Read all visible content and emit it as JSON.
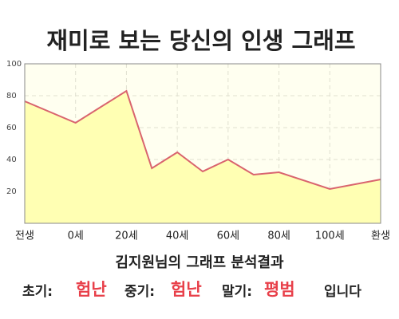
{
  "chart_data": {
    "type": "area",
    "title": "재미로 보는 당신의 인생 그래프",
    "x": [
      -20,
      0,
      20,
      30,
      40,
      50,
      60,
      70,
      80,
      100,
      120
    ],
    "values": [
      76.5,
      63,
      83,
      34.5,
      44.5,
      32.5,
      40,
      30.5,
      32,
      21.5,
      27.5
    ],
    "color": "#d9646e",
    "fill": "#ffffb3",
    "background": "#fffff0",
    "xlim": [
      -20,
      120
    ],
    "xticks": [
      {
        "value": -20,
        "label": "전생"
      },
      {
        "value": 0,
        "label": "0세"
      },
      {
        "value": 20,
        "label": "20세"
      },
      {
        "value": 40,
        "label": "40세"
      },
      {
        "value": 60,
        "label": "60세"
      },
      {
        "value": 80,
        "label": "80세"
      },
      {
        "value": 100,
        "label": "100세"
      },
      {
        "value": 120,
        "label": "환생"
      }
    ],
    "ylim": [
      0,
      100
    ],
    "yticks": [
      20,
      40,
      60,
      80,
      100
    ],
    "grid": true
  },
  "result": {
    "heading": "김지원님의 그래프 분석결과",
    "items": [
      {
        "label": "초기:",
        "value": "험난"
      },
      {
        "label": "중기:",
        "value": "험난"
      },
      {
        "label": "말기:",
        "value": "평범"
      }
    ],
    "suffix": "입니다"
  }
}
